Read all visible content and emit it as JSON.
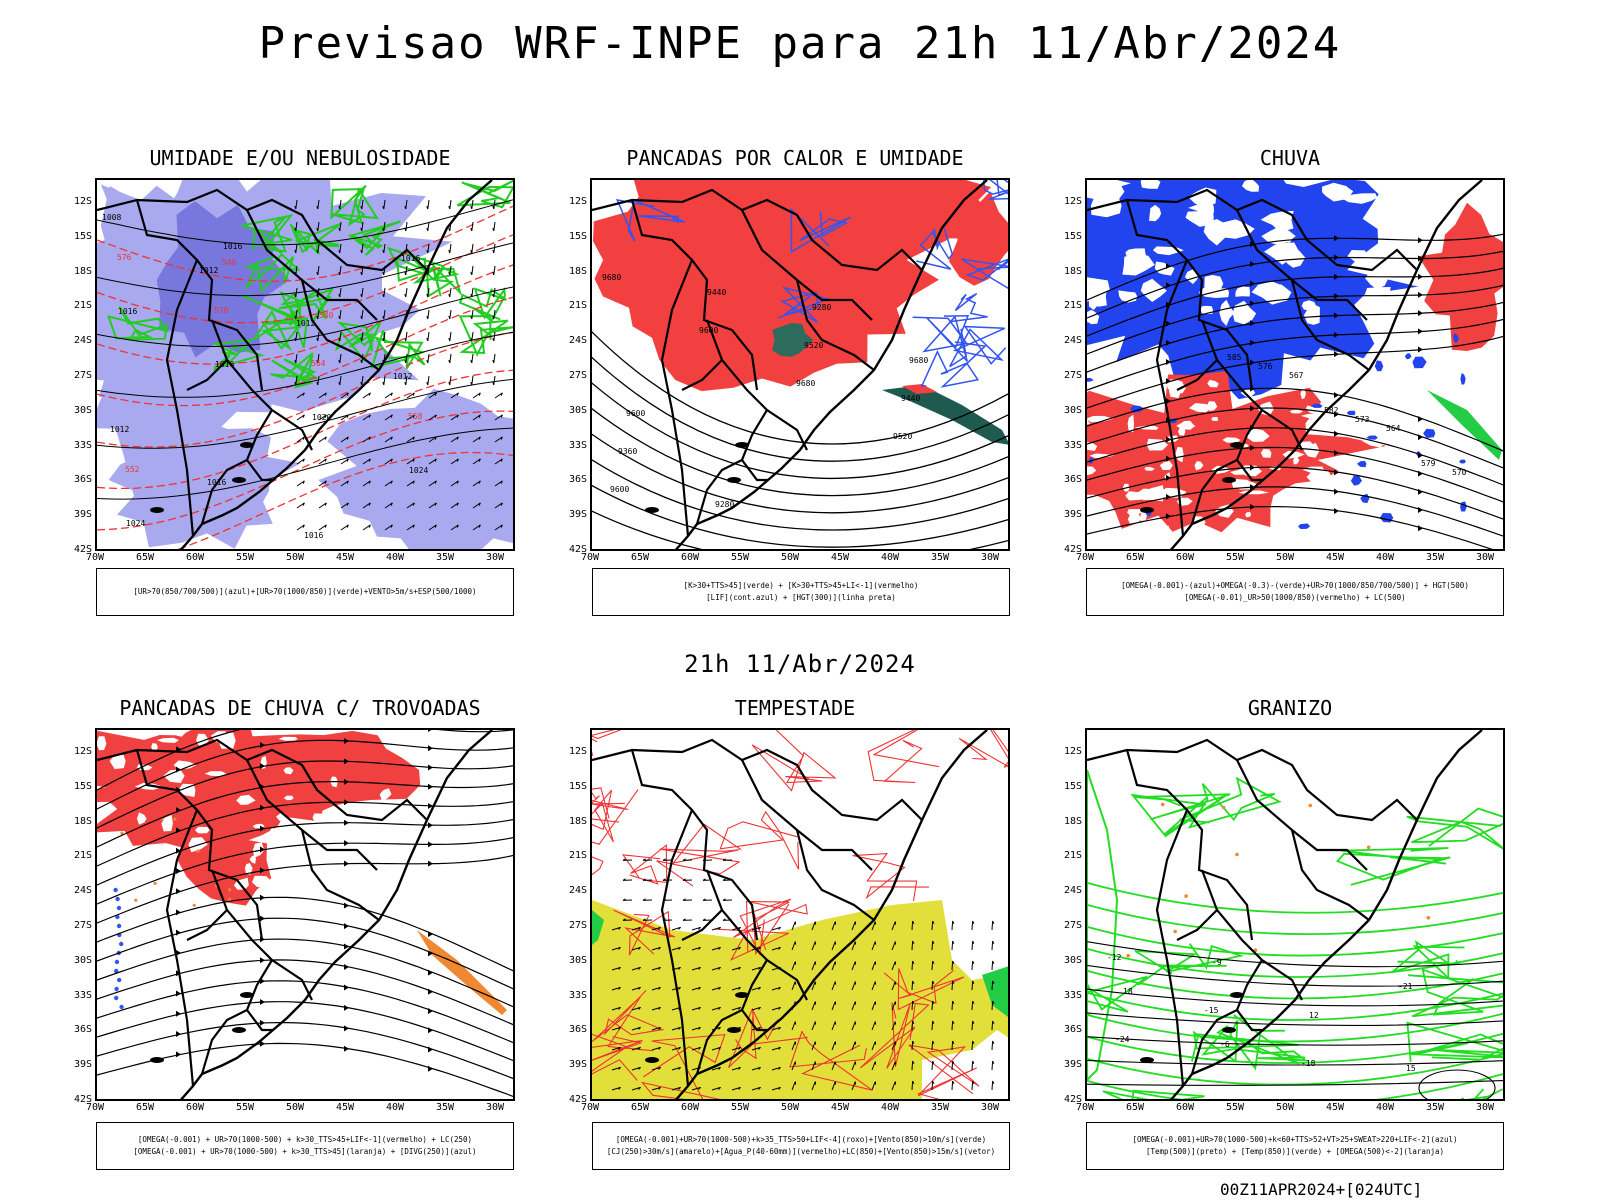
{
  "title": "Previsao WRF-INPE  para 21h 11/Abr/2024",
  "mid_date": "21h 11/Abr/2024",
  "footer": "00Z11APR2024+[024UTC]",
  "lat_ticks": [
    "12S",
    "15S",
    "18S",
    "21S",
    "24S",
    "27S",
    "30S",
    "33S",
    "36S",
    "39S",
    "42S"
  ],
  "lon_ticks": [
    "70W",
    "65W",
    "60W",
    "55W",
    "50W",
    "45W",
    "40W",
    "35W",
    "30W"
  ],
  "panels": [
    {
      "title": "UMIDADE E/OU NEBULOSIDADE",
      "legend": [
        "[UR>70(850/700/500)](azul)+[UR>70(1000/850)](verde)+VENTO>5m/s+ESP(500/1000)"
      ],
      "labels": [
        "1008",
        "1012",
        "1012",
        "1012",
        "1012",
        "1016",
        "1016",
        "1016",
        "1016",
        "1016",
        "1020",
        "1024",
        "1024",
        "1016",
        "576",
        "570",
        "564",
        "558",
        "552",
        "546",
        "540"
      ]
    },
    {
      "title": "PANCADAS POR CALOR E UMIDADE",
      "legend": [
        "[K>30+TTS>45](verde) + [K>30+TTS>45+LI<-1](vermelho)",
        "[LIF](cont.azul) + [HGT(300)](linha preta)"
      ],
      "labels": [
        "9680",
        "9600",
        "9680",
        "9520",
        "9600",
        "9440",
        "9520",
        "9440",
        "9360",
        "9280",
        "9280",
        "9680",
        "9600"
      ]
    },
    {
      "title": "CHUVA",
      "legend": [
        "[OMEGA(-0.001)-(azul)+OMEGA(-0.3)-(verde)+UR>70(1000/850/700/500)] + HGT(500)",
        "[OMEGA(-0.01)_UR>50(1000/850)(vermelho) + LC(500)"
      ],
      "labels": [
        "585",
        "582",
        "579",
        "576",
        "573",
        "570",
        "567",
        "564"
      ]
    },
    {
      "title": "PANCADAS DE CHUVA C/ TROVOADAS",
      "legend": [
        "[OMEGA(-0.001) + UR>70(1000-500) + k>30_TTS>45+LIF<-1](vermelho) + LC(250)",
        "[OMEGA(-0.001) + UR>70(1000-500) + k>30_TTS>45](laranja) + [DIVG(250)](azul)"
      ],
      "labels": []
    },
    {
      "title": "TEMPESTADE",
      "legend": [
        "[OMEGA(-0.001)+UR>70(1000-500)+k>35_TTS>50+LIF<-4](roxo)+[Vento(850)>10m/s](verde)",
        "[CJ(250)>30m/s](amarelo)+[Agua_P(40-60mm)](vermelho)+LC(850)+[Vento(850)>15m/s](vetor)"
      ],
      "labels": []
    },
    {
      "title": "GRANIZO",
      "legend": [
        "[OMEGA(-0.001)+UR>70(1000-500)+k<60+TTS>52+VT>25+SWEAT>220+LIF<-2](azul)",
        "[Temp(500)](preto) + [Temp(850)](verde) + [OMEGA(500)<-2](laranja)"
      ],
      "labels": [
        "-12",
        "-15",
        "-18",
        "-21",
        "-24",
        "-9",
        "12",
        "15",
        "18",
        "-6"
      ]
    }
  ]
}
